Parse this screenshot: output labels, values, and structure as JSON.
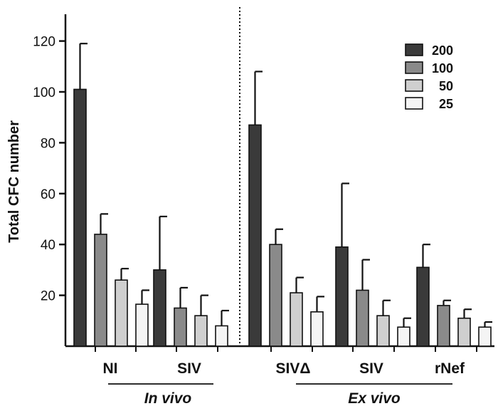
{
  "chart_data": {
    "type": "bar",
    "ylabel": "Total CFC number",
    "ylim": [
      0,
      130
    ],
    "yticks": [
      20,
      40,
      60,
      80,
      100,
      120
    ],
    "legend": {
      "position": "top-right",
      "entries": [
        {
          "label": "200",
          "color": "#3a3a3a"
        },
        {
          "label": "100",
          "color": "#8a8a8a"
        },
        {
          "label": "50",
          "color": "#cfcfcf"
        },
        {
          "label": "25",
          "color": "#f4f4f4"
        }
      ]
    },
    "categories": [
      "NI",
      "SIV",
      "SIVΔ",
      "SIV",
      "rNef"
    ],
    "series": [
      {
        "name": "200",
        "values": [
          101,
          30,
          87,
          39,
          31
        ],
        "errors": [
          18,
          21,
          21,
          25,
          9
        ]
      },
      {
        "name": "100",
        "values": [
          44,
          15,
          40,
          22,
          16
        ],
        "errors": [
          8,
          8,
          6,
          12,
          2
        ]
      },
      {
        "name": "50",
        "values": [
          26,
          12,
          21,
          12,
          11
        ],
        "errors": [
          4.5,
          8,
          6,
          6,
          3.5
        ]
      },
      {
        "name": "25",
        "values": [
          16.5,
          8,
          13.5,
          7.5,
          7.5
        ],
        "errors": [
          5.5,
          6,
          6,
          3.5,
          2
        ]
      }
    ],
    "groups": [
      {
        "label": "In vivo",
        "categories": [
          "NI",
          "SIV"
        ]
      },
      {
        "label": "Ex vivo",
        "categories": [
          "SIVΔ",
          "SIV",
          "rNef"
        ]
      }
    ],
    "divider": "dotted line between In vivo and Ex vivo"
  }
}
